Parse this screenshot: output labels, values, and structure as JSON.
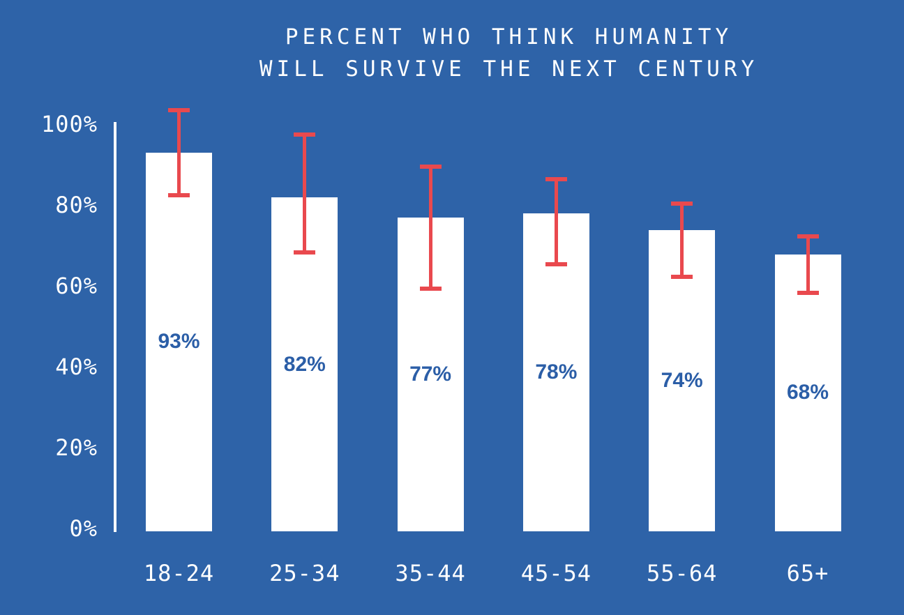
{
  "title_lines": [
    "PERCENT WHO THINK HUMANITY",
    "WILL SURVIVE THE NEXT CENTURY"
  ],
  "colors": {
    "background": "#2E63A8",
    "bar_fill": "#FFFFFF",
    "error_bar": "#E9494E",
    "value_label": "#2B5EA7",
    "axis_line": "#FFFFFF",
    "axis_text": "#FFFFFF"
  },
  "chart_data": {
    "type": "bar",
    "title": "PERCENT WHO THINK HUMANITY WILL SURVIVE THE NEXT CENTURY",
    "categories": [
      "18-24",
      "25-34",
      "35-44",
      "45-54",
      "55-64",
      "65+"
    ],
    "values": [
      93,
      82,
      77,
      78,
      74,
      68
    ],
    "value_labels": [
      "93%",
      "82%",
      "77%",
      "78%",
      "74%",
      "68%"
    ],
    "error_bars": [
      {
        "low": 82,
        "high": 104
      },
      {
        "low": 68,
        "high": 98
      },
      {
        "low": 59,
        "high": 90
      },
      {
        "low": 65,
        "high": 87
      },
      {
        "low": 62,
        "high": 81
      },
      {
        "low": 58,
        "high": 73
      }
    ],
    "y_axis": {
      "ticks": [
        0,
        20,
        40,
        60,
        80,
        100
      ],
      "tick_labels": [
        "0%",
        "20%",
        "40%",
        "60%",
        "80%",
        "100%"
      ],
      "ylim": [
        0,
        100
      ]
    },
    "xlabel": "",
    "ylabel": "",
    "legend": "none",
    "grid": false,
    "bar_color": "#FFFFFF",
    "error_bar_color": "#E9494E"
  }
}
